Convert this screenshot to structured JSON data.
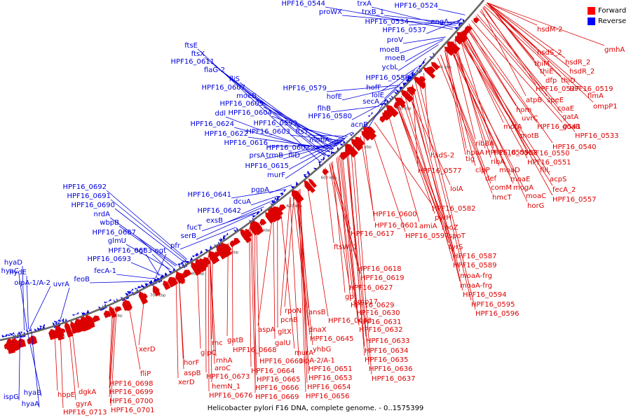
{
  "caption": "Helicobacter pylori F16 DNA, complete genome. - 0..1575399",
  "legend": [
    {
      "label": "Forward",
      "color": "#ff0000"
    },
    {
      "label": "Reverse",
      "color": "#0000ff"
    }
  ],
  "colors": {
    "forward": "#dd0000",
    "reverse": "#0000dd",
    "backbone": "#666666"
  },
  "ticks": [
    "540 kbp",
    "560 kbp",
    "580 kbp",
    "600 kbp",
    "620 kbp",
    "640 kbp",
    "660 kbp",
    "680 kbp",
    "700 kbp",
    "720 kbp",
    "740 kbp"
  ],
  "reverse_labels": [
    "HPF16_0544",
    "trxA",
    "proWX",
    "trxB_1",
    "HPF16_0524",
    "HPF16_0534",
    "engA",
    "HPF16_0537",
    "proV",
    "moeB",
    "moeB",
    "ycbL",
    "HPF16_0556",
    "hofF",
    "lolE",
    "HPF16_0579",
    "hofE",
    "secA",
    "flhB",
    "HPF16_0580",
    "acnB",
    "ftsE",
    "ftsX",
    "HPF16_0611",
    "flaG-2",
    "fliS",
    "HPF16_0607",
    "moeB",
    "HPF16_0605",
    "ddl",
    "HPF16_0604",
    "HPF16_0624",
    "HPF16_0599",
    "HPF16_0622",
    "HPF16_0603",
    "ftsY",
    "HPF16_0616",
    "HPF16_0602",
    "mobA",
    "prsA",
    "trmB",
    "fliD",
    "HPF16_0615",
    "murF",
    "HPF16_0641",
    "pgpA",
    "dcuA",
    "HPF16_0642",
    "exsB",
    "fucT",
    "serB",
    "pfr",
    "HPF16_0692",
    "HPF16_0691",
    "HPF16_0690",
    "nrdA",
    "wbpB",
    "HPF16_0687",
    "glmU",
    "ogt",
    "HPF16_0683",
    "ogt",
    "HPF16_0693",
    "fecA-1",
    "feoB",
    "hyaC",
    "hyaD",
    "hydE",
    "oipA-1/A-2",
    "uvrA",
    "ispG",
    "hyaB",
    "hyaA"
  ],
  "forward_labels": [
    "hsdM-2",
    "gmhA",
    "hsdS_2",
    "thiM",
    "hsdR_2",
    "thiE",
    "hsdR_2",
    "dfp",
    "thiD",
    "HPF16_0527",
    "flmA",
    "HPF16_0519",
    "atpB",
    "speE",
    "ompP1",
    "coaE",
    "hom",
    "gatA",
    "uvrC",
    "motA",
    "HPF16_0541",
    "guaB",
    "motB",
    "HPF16_0533",
    "ribBA",
    "HPF16_0552",
    "HPF16_0540",
    "hpaA",
    "HPF16_0550",
    "HPF16_0559",
    "tig",
    "ribA",
    "HPF16_0551",
    "hsdS-2",
    "clpP",
    "moaD",
    "fliL",
    "def",
    "moaE",
    "acpS",
    "HPF16_0577",
    "comM",
    "mogA",
    "fecA_2",
    "lolA",
    "hmcT",
    "moaC",
    "HPF16_0557",
    "horG",
    "HPF16_0582",
    "HPF16_0600",
    "pyrH",
    "HPF16_0601",
    "amiA",
    "rpoZ",
    "HPF16_0617",
    "HPF16_0597",
    "spoT",
    "tyrS",
    "ftsW_1",
    "HPF16_0587",
    "HPF16_0589",
    "moaA-frg",
    "HPF16_0618",
    "moaA-frg",
    "HPF16_0619",
    "HPF16_0594",
    "HPF16_0627",
    "HPF16_0595",
    "gpt",
    "HPF16_0596",
    "omp17",
    "HPF16_0629",
    "rpoN",
    "ansB",
    "HPF16_0630",
    "pcnB",
    "HPF16_0643",
    "HPF16_0631",
    "aspA",
    "dnaX",
    "gltX",
    "HPF16_0632",
    "HPF16_0645",
    "galU",
    "HPF16_0633",
    "yhbG",
    "gatB",
    "murA",
    "HPF16_0634",
    "rnc",
    "HPF16_0668",
    "HPF16_0663",
    "oipA-2/A-1",
    "HPF16_0635",
    "xerD",
    "rnhA",
    "HPF16_0664",
    "HPF16_0651",
    "HPF16_0636",
    "horF",
    "glpC",
    "aroC",
    "HPF16_0665",
    "HPF16_0653",
    "HPF16_0637",
    "aspB",
    "HPF16_0673",
    "HPF16_0666",
    "HPF16_0654",
    "xerD",
    "hemN_1",
    "HPF16_0669",
    "HPF16_0656",
    "HPF16_0676",
    "fliP",
    "HPF16_0698",
    "hopE",
    "dgkA",
    "HPF16_0699",
    "gyrA",
    "HPF16_0700",
    "HPF16_0713",
    "HPF16_0701"
  ]
}
